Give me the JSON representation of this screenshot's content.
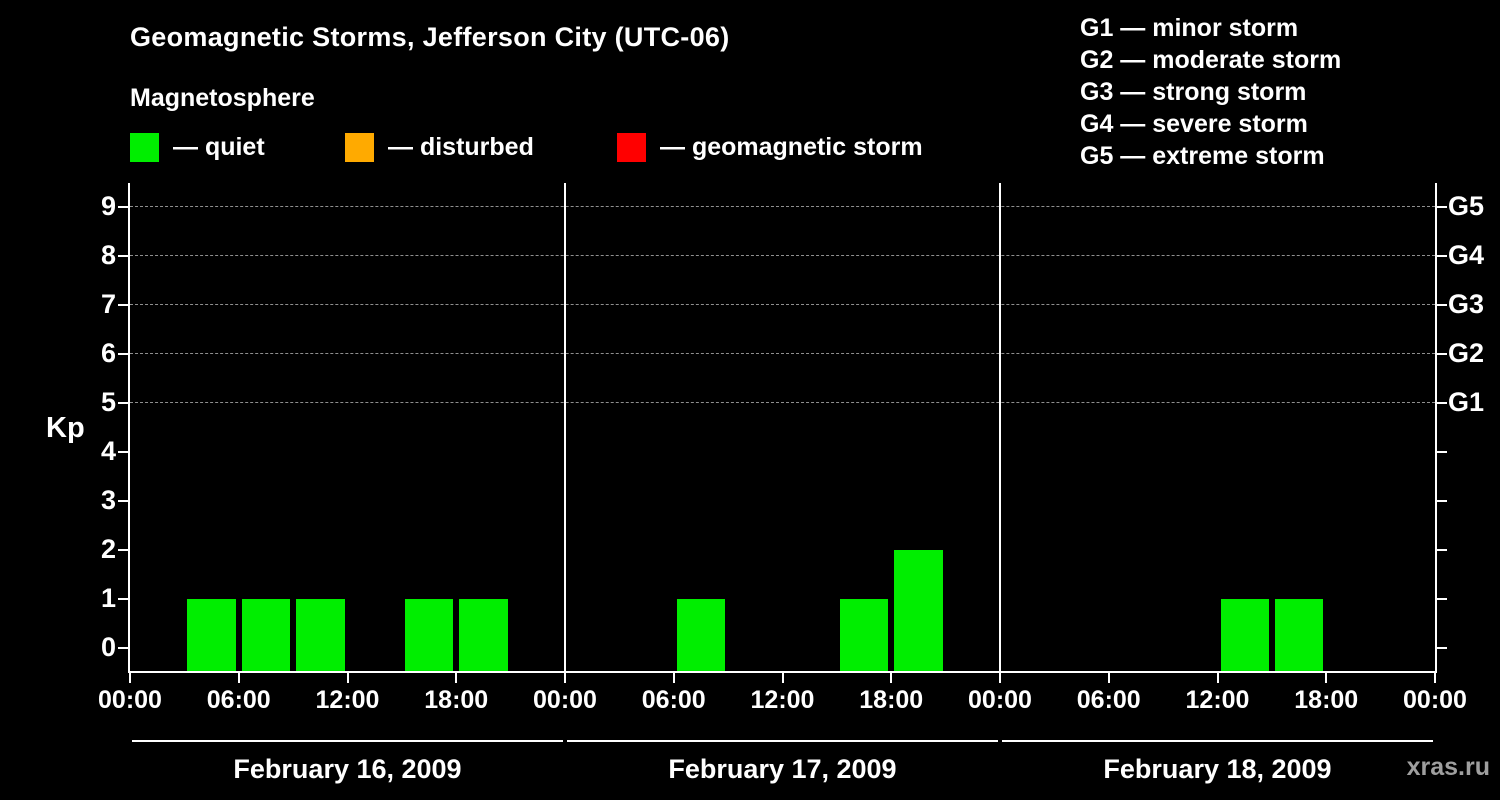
{
  "title": "Geomagnetic Storms, Jefferson City (UTC-06)",
  "subtitle": "Magnetosphere",
  "legend": {
    "items": [
      {
        "key": "quiet",
        "label": "— quiet",
        "color": "#00ee00"
      },
      {
        "key": "disturbed",
        "label": "— disturbed",
        "color": "#ffaa00"
      },
      {
        "key": "storm",
        "label": "— geomagnetic storm",
        "color": "#ff0000"
      }
    ]
  },
  "storm_scale": [
    {
      "code": "G1",
      "label": "G1 — minor storm"
    },
    {
      "code": "G2",
      "label": "G2 — moderate storm"
    },
    {
      "code": "G3",
      "label": "G3 — strong storm"
    },
    {
      "code": "G4",
      "label": "G4 — severe storm"
    },
    {
      "code": "G5",
      "label": "G5 — extreme storm"
    }
  ],
  "watermark": "xras.ru",
  "chart_data": {
    "type": "bar",
    "title": "Geomagnetic Storms, Jefferson City (UTC-06)",
    "ylabel": "Kp",
    "ylim": [
      -0.5,
      9.5
    ],
    "yticks": [
      0,
      1,
      2,
      3,
      4,
      5,
      6,
      7,
      8,
      9
    ],
    "grid": "dashed horizontal at storm levels",
    "grid_levels": [
      {
        "kp": 5,
        "g": "G1"
      },
      {
        "kp": 6,
        "g": "G2"
      },
      {
        "kp": 7,
        "g": "G3"
      },
      {
        "kp": 8,
        "g": "G4"
      },
      {
        "kp": 9,
        "g": "G5"
      }
    ],
    "x_tick_labels": [
      "00:00",
      "06:00",
      "12:00",
      "18:00"
    ],
    "x_final_label": "00:00",
    "bar_interval_hours": 3,
    "series_colors": {
      "quiet": "#00ee00",
      "disturbed": "#ffaa00",
      "storm": "#ff0000"
    },
    "color_thresholds": {
      "disturbed_at_kp": 4,
      "storm_at_kp": 5
    },
    "days": [
      {
        "date": "February 16, 2009",
        "kp_values": [
          0,
          1,
          1,
          1,
          0,
          1,
          1,
          0
        ]
      },
      {
        "date": "February 17, 2009",
        "kp_values": [
          0,
          0,
          1,
          0,
          0,
          1,
          2,
          0
        ]
      },
      {
        "date": "February 18, 2009",
        "kp_values": [
          0,
          0,
          0,
          0,
          1,
          1,
          0,
          0
        ]
      }
    ]
  }
}
